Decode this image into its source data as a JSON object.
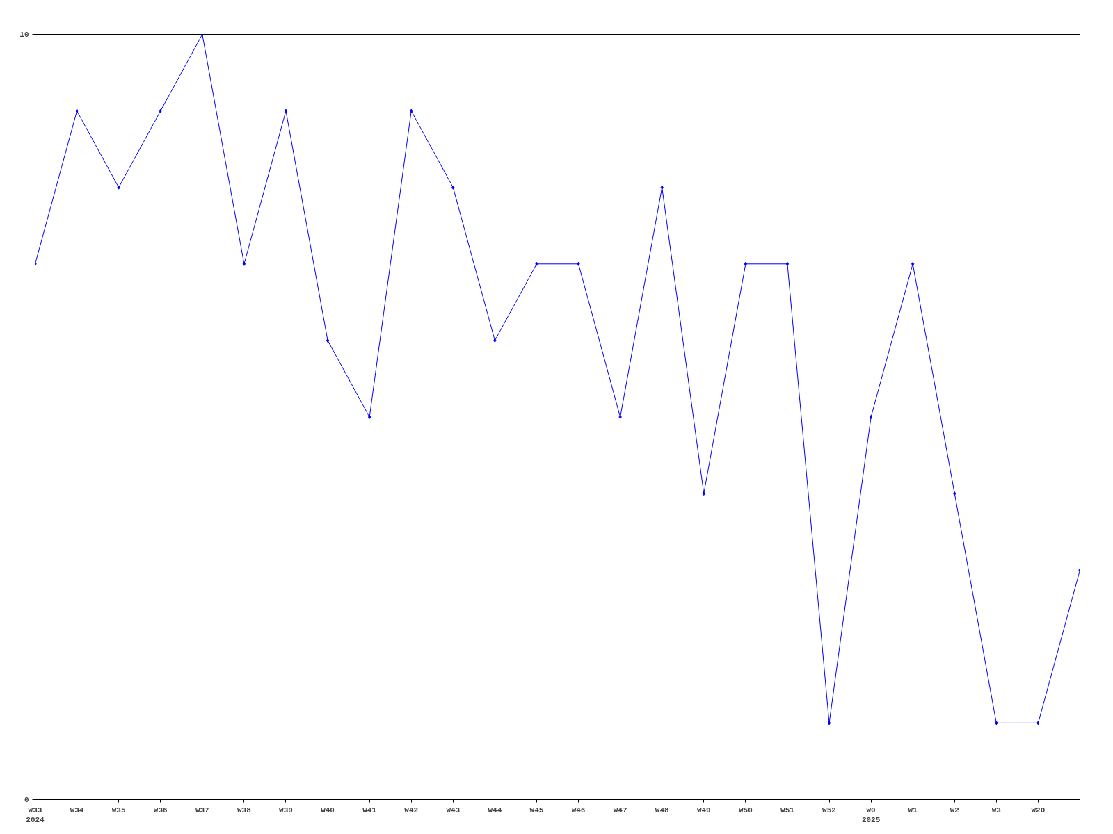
{
  "chart_data": {
    "type": "line",
    "categories": [
      "W33\n2024",
      "W34",
      "W35",
      "W36",
      "W37",
      "W38",
      "W39",
      "W40",
      "W41",
      "W42",
      "W43",
      "W44",
      "W45",
      "W46",
      "W47",
      "W48",
      "W49",
      "W50",
      "W51",
      "W52",
      "W0\n2025",
      "W1",
      "W2",
      "W3",
      "W20",
      null
    ],
    "series": [
      {
        "color": "#0000ff",
        "values": [
          7,
          9,
          8,
          9,
          10,
          7,
          9,
          6,
          5,
          9,
          8,
          6,
          7,
          7,
          5,
          8,
          4,
          7,
          7,
          1,
          5,
          7,
          4,
          1,
          1,
          3
        ]
      }
    ],
    "ylim": [
      0,
      10
    ],
    "yticks": [
      0,
      10
    ],
    "marker": "diamond",
    "line_style": "solid",
    "grid": false
  }
}
